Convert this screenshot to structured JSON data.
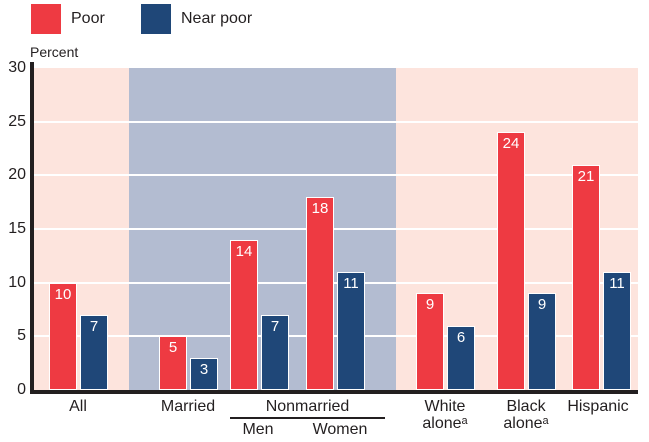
{
  "legend": {
    "items": [
      {
        "label": "Poor"
      },
      {
        "label": "Near poor"
      }
    ]
  },
  "colors": {
    "poor": "#ee3a42",
    "near_poor": "#1f4778",
    "plot_bg": "#fde4dd",
    "band_bg": "#b3bcd1",
    "grid": "#ffffff",
    "axis": "#231f20"
  },
  "y_axis": {
    "title": "Percent",
    "ticks": [
      "30",
      "25",
      "20",
      "15",
      "10",
      "5",
      "0"
    ]
  },
  "x_axis": {
    "all": "All",
    "married": "Married",
    "nonmarried": {
      "title": "Nonmarried",
      "men": "Men",
      "women": "Women"
    },
    "white": {
      "line1": "White",
      "line2": "alone",
      "sup": "a"
    },
    "black": {
      "line1": "Black",
      "line2": "alone",
      "sup": "a"
    },
    "hispanic": "Hispanic"
  },
  "chart_data": {
    "type": "bar",
    "categories": [
      "All",
      "Married",
      "Nonmarried Men",
      "Nonmarried Women",
      "White alone",
      "Black alone",
      "Hispanic"
    ],
    "series": [
      {
        "name": "Poor",
        "color": "#ee3a42",
        "values": [
          10,
          5,
          14,
          18,
          9,
          24,
          21
        ]
      },
      {
        "name": "Near poor",
        "color": "#1f4778",
        "values": [
          7,
          3,
          7,
          11,
          6,
          9,
          11
        ]
      }
    ],
    "ylabel": "Percent",
    "ylim": [
      0,
      30
    ],
    "grid_interval": 5,
    "grid": true,
    "legend_position": "top-left",
    "band_categories": [
      "Married",
      "Nonmarried Men",
      "Nonmarried Women"
    ],
    "footnote_marker": "a"
  }
}
